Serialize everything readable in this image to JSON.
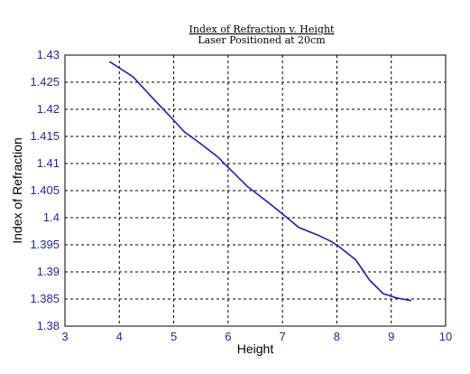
{
  "chart_data": {
    "type": "line",
    "title": "Index of Refraction v. Height",
    "subtitle": "Laser Positioned at 20cm",
    "xlabel": "Height",
    "ylabel": "Index of Refraction",
    "xlim": [
      3,
      10
    ],
    "ylim": [
      1.38,
      1.43
    ],
    "xticks": [
      3,
      4,
      5,
      6,
      7,
      8,
      9,
      10
    ],
    "yticks": [
      1.38,
      1.385,
      1.39,
      1.395,
      1.4,
      1.405,
      1.41,
      1.415,
      1.42,
      1.425,
      1.43
    ],
    "grid": true,
    "series_color": "#1a1ad6",
    "series": [
      {
        "x": [
          3.82,
          4.25,
          4.6,
          4.95,
          5.2,
          5.45,
          5.8,
          6.05,
          6.35,
          6.75,
          7.05,
          7.3,
          7.65,
          7.9,
          8.05,
          8.35,
          8.6,
          8.85,
          9.1,
          9.37
        ],
        "y": [
          1.4288,
          1.426,
          1.4222,
          1.4185,
          1.4158,
          1.414,
          1.4113,
          1.4088,
          1.4058,
          1.4027,
          1.4003,
          1.3982,
          1.3968,
          1.3956,
          1.3946,
          1.3922,
          1.3885,
          1.386,
          1.3852,
          1.3847
        ]
      }
    ]
  }
}
